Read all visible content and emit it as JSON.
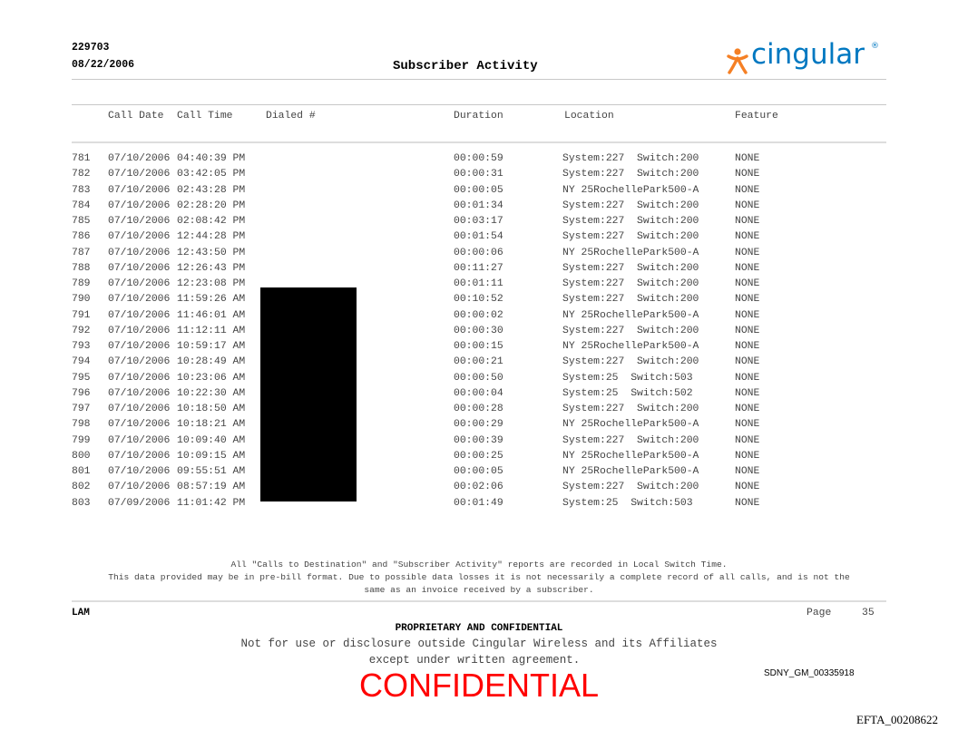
{
  "header": {
    "id": "229703",
    "date": "08/22/2006",
    "title": "Subscriber Activity",
    "logo_text": "cingular",
    "logo_mark": "®",
    "brand_colors": {
      "orange": "#f58025",
      "blue": "#0078c1"
    }
  },
  "columns": {
    "date": "Call Date",
    "time": "Call Time",
    "dialed": "Dialed #",
    "duration": "Duration",
    "location": "Location",
    "feature": "Feature"
  },
  "rows": [
    {
      "n": "781",
      "date": "07/10/2006",
      "time": "04:40:39 PM",
      "duration": "00:00:59",
      "location": "System:227  Switch:200",
      "feature": "NONE"
    },
    {
      "n": "782",
      "date": "07/10/2006",
      "time": "03:42:05 PM",
      "duration": "00:00:31",
      "location": "System:227  Switch:200",
      "feature": "NONE"
    },
    {
      "n": "783",
      "date": "07/10/2006",
      "time": "02:43:28 PM",
      "duration": "00:00:05",
      "location": "NY 25RochellePark500-A",
      "feature": "NONE"
    },
    {
      "n": "784",
      "date": "07/10/2006",
      "time": "02:28:20 PM",
      "duration": "00:01:34",
      "location": "System:227  Switch:200",
      "feature": "NONE"
    },
    {
      "n": "785",
      "date": "07/10/2006",
      "time": "02:08:42 PM",
      "duration": "00:03:17",
      "location": "System:227  Switch:200",
      "feature": "NONE"
    },
    {
      "n": "786",
      "date": "07/10/2006",
      "time": "12:44:28 PM",
      "duration": "00:01:54",
      "location": "System:227  Switch:200",
      "feature": "NONE"
    },
    {
      "n": "787",
      "date": "07/10/2006",
      "time": "12:43:50 PM",
      "duration": "00:00:06",
      "location": "NY 25RochellePark500-A",
      "feature": "NONE"
    },
    {
      "n": "788",
      "date": "07/10/2006",
      "time": "12:26:43 PM",
      "duration": "00:11:27",
      "location": "System:227  Switch:200",
      "feature": "NONE"
    },
    {
      "n": "789",
      "date": "07/10/2006",
      "time": "12:23:08 PM",
      "duration": "00:01:11",
      "location": "System:227  Switch:200",
      "feature": "NONE"
    },
    {
      "n": "790",
      "date": "07/10/2006",
      "time": "11:59:26 AM",
      "duration": "00:10:52",
      "location": "System:227  Switch:200",
      "feature": "NONE"
    },
    {
      "n": "791",
      "date": "07/10/2006",
      "time": "11:46:01 AM",
      "duration": "00:00:02",
      "location": "NY 25RochellePark500-A",
      "feature": "NONE"
    },
    {
      "n": "792",
      "date": "07/10/2006",
      "time": "11:12:11 AM",
      "duration": "00:00:30",
      "location": "System:227  Switch:200",
      "feature": "NONE"
    },
    {
      "n": "793",
      "date": "07/10/2006",
      "time": "10:59:17 AM",
      "duration": "00:00:15",
      "location": "NY 25RochellePark500-A",
      "feature": "NONE"
    },
    {
      "n": "794",
      "date": "07/10/2006",
      "time": "10:28:49 AM",
      "duration": "00:00:21",
      "location": "System:227  Switch:200",
      "feature": "NONE"
    },
    {
      "n": "795",
      "date": "07/10/2006",
      "time": "10:23:06 AM",
      "duration": "00:00:50",
      "location": "System:25  Switch:503",
      "feature": "NONE"
    },
    {
      "n": "796",
      "date": "07/10/2006",
      "time": "10:22:30 AM",
      "duration": "00:00:04",
      "location": "System:25  Switch:502",
      "feature": "NONE"
    },
    {
      "n": "797",
      "date": "07/10/2006",
      "time": "10:18:50 AM",
      "duration": "00:00:28",
      "location": "System:227  Switch:200",
      "feature": "NONE"
    },
    {
      "n": "798",
      "date": "07/10/2006",
      "time": "10:18:21 AM",
      "duration": "00:00:29",
      "location": "NY 25RochellePark500-A",
      "feature": "NONE"
    },
    {
      "n": "799",
      "date": "07/10/2006",
      "time": "10:09:40 AM",
      "duration": "00:00:39",
      "location": "System:227  Switch:200",
      "feature": "NONE"
    },
    {
      "n": "800",
      "date": "07/10/2006",
      "time": "10:09:15 AM",
      "duration": "00:00:25",
      "location": "NY 25RochellePark500-A",
      "feature": "NONE"
    },
    {
      "n": "801",
      "date": "07/10/2006",
      "time": "09:55:51 AM",
      "duration": "00:00:05",
      "location": "NY 25RochellePark500-A",
      "feature": "NONE"
    },
    {
      "n": "802",
      "date": "07/10/2006",
      "time": "08:57:19 AM",
      "duration": "00:02:06",
      "location": "System:227  Switch:200",
      "feature": "NONE"
    },
    {
      "n": "803",
      "date": "07/09/2006",
      "time": "11:01:42 PM",
      "duration": "00:01:49",
      "location": "System:25  Switch:503",
      "feature": "NONE"
    }
  ],
  "notes": {
    "line1": "All \"Calls to Destination\" and \"Subscriber Activity\" reports are recorded in Local Switch Time.",
    "line2": "This data provided may be in pre-bill format. Due to possible data losses it is not necessarily a complete record of all calls, and is not the",
    "line3": "same as an invoice received by a subscriber."
  },
  "footer": {
    "left": "LAM",
    "page_label": "Page",
    "page_number": "35",
    "proprietary": "PROPRIETARY AND CONFIDENTIAL",
    "disclosure1": "Not for use or disclosure outside Cingular Wireless and its Affiliates",
    "disclosure2": "except under written agreement.",
    "confidential_stamp": "CONFIDENTIAL",
    "bates": "SDNY_GM_00335918",
    "efta": "EFTA_00208622"
  }
}
